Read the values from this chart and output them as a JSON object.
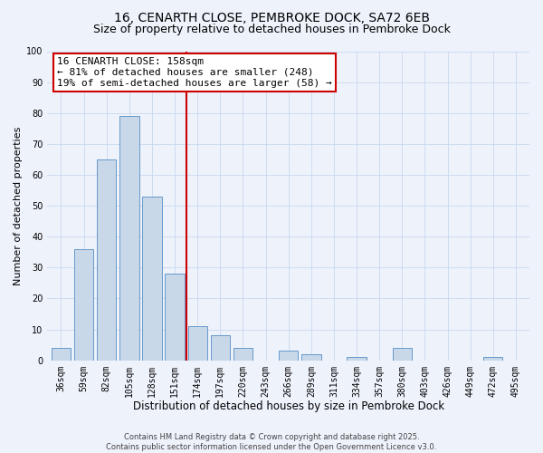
{
  "title": "16, CENARTH CLOSE, PEMBROKE DOCK, SA72 6EB",
  "subtitle": "Size of property relative to detached houses in Pembroke Dock",
  "xlabel": "Distribution of detached houses by size in Pembroke Dock",
  "ylabel": "Number of detached properties",
  "bar_labels": [
    "36sqm",
    "59sqm",
    "82sqm",
    "105sqm",
    "128sqm",
    "151sqm",
    "174sqm",
    "197sqm",
    "220sqm",
    "243sqm",
    "266sqm",
    "289sqm",
    "311sqm",
    "334sqm",
    "357sqm",
    "380sqm",
    "403sqm",
    "426sqm",
    "449sqm",
    "472sqm",
    "495sqm"
  ],
  "bar_values": [
    4,
    36,
    65,
    79,
    53,
    28,
    11,
    8,
    4,
    0,
    3,
    2,
    0,
    1,
    0,
    4,
    0,
    0,
    0,
    1,
    0
  ],
  "bar_color": "#c8d8e8",
  "bar_edge_color": "#6699cc",
  "vline_x": 5.5,
  "vline_color": "#cc0000",
  "annotation_text": "16 CENARTH CLOSE: 158sqm\n← 81% of detached houses are smaller (248)\n19% of semi-detached houses are larger (58) →",
  "annotation_box_color": "#ffffff",
  "annotation_box_edge_color": "#cc0000",
  "ylim": [
    0,
    100
  ],
  "yticks": [
    0,
    10,
    20,
    30,
    40,
    50,
    60,
    70,
    80,
    90,
    100
  ],
  "grid_color": "#c8d8f0",
  "background_color": "#eef2fb",
  "footer_line1": "Contains HM Land Registry data © Crown copyright and database right 2025.",
  "footer_line2": "Contains public sector information licensed under the Open Government Licence v3.0.",
  "title_fontsize": 10,
  "subtitle_fontsize": 9,
  "xlabel_fontsize": 8.5,
  "ylabel_fontsize": 8,
  "tick_fontsize": 7,
  "annotation_fontsize": 8,
  "footer_fontsize": 6
}
